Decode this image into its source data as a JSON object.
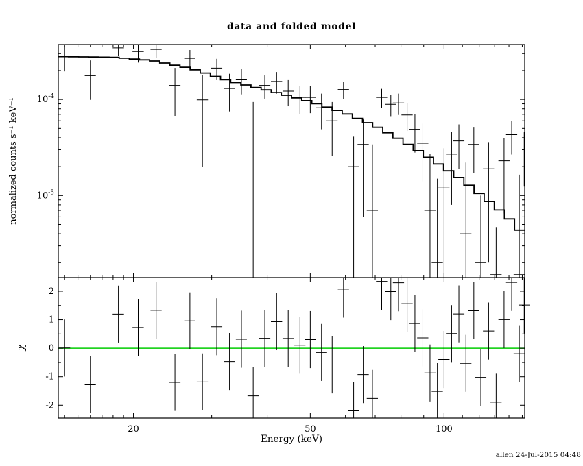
{
  "chart_data": {
    "type": "line+scatter",
    "title": "data and folded model",
    "xlabel": "Energy (keV)",
    "ylabel_top": "normalized counts s⁻¹ keV⁻¹",
    "ylabel_bottom": "χ",
    "watermark": "allen 24-Jul-2015 04:48",
    "xscale": "log",
    "yscale_top": "log",
    "yscale_bottom": "linear",
    "xlim": [
      13.55,
      151.9
    ],
    "ylim_top": [
      1.4e-06,
      0.000373
    ],
    "ylim_bottom": [
      -2.45,
      2.48
    ],
    "xticks": [
      20,
      50,
      100
    ],
    "xticks_minor": [
      14,
      15,
      16,
      17,
      18,
      19,
      30,
      40,
      60,
      70,
      80,
      90,
      110,
      120,
      130,
      140,
      150
    ],
    "yticks_top": [
      1e-05,
      0.0001
    ],
    "yticks_bottom": [
      -2,
      -1,
      0,
      1,
      2
    ],
    "grid": false,
    "legend": false,
    "zero_line_color": "#00cc00",
    "model_color": "#000000",
    "data_color": "#000000",
    "chi_err": 1.0,
    "model": [
      [
        13.5,
        0.00028
      ],
      [
        18,
        0.000275
      ],
      [
        22,
        0.000255
      ],
      [
        27,
        0.00021
      ],
      [
        33,
        0.000155
      ],
      [
        40,
        0.000125
      ],
      [
        50,
        9.5e-05
      ],
      [
        60,
        7.2e-05
      ],
      [
        70,
        5.3e-05
      ],
      [
        80,
        3.8e-05
      ],
      [
        90,
        2.7e-05
      ],
      [
        100,
        1.95e-05
      ],
      [
        110,
        1.45e-05
      ],
      [
        120,
        1.05e-05
      ],
      [
        130,
        7.8e-06
      ],
      [
        140,
        5.8e-06
      ],
      [
        152,
        3.8e-06
      ]
    ],
    "points": [
      {
        "e": 14.0,
        "w": 0.41,
        "y": 0.00028,
        "dy": 8.4e-05
      },
      {
        "e": 16.0,
        "w": 0.46,
        "y": 0.000177,
        "dy": 7.8e-05
      },
      {
        "e": 18.5,
        "w": 0.54,
        "y": 0.000344,
        "dy": 6e-05
      },
      {
        "e": 20.5,
        "w": 0.6,
        "y": 0.000315,
        "dy": 7.3e-05
      },
      {
        "e": 22.5,
        "w": 0.65,
        "y": 0.000332,
        "dy": 6.2e-05
      },
      {
        "e": 24.8,
        "w": 0.72,
        "y": 0.00014,
        "dy": 7.3e-05
      },
      {
        "e": 26.8,
        "w": 0.78,
        "y": 0.000268,
        "dy": 5.9e-05
      },
      {
        "e": 28.6,
        "w": 0.83,
        "y": 9.9e-05,
        "dy": 7.9e-05
      },
      {
        "e": 30.8,
        "w": 0.89,
        "y": 0.000212,
        "dy": 5.3e-05
      },
      {
        "e": 32.9,
        "w": 0.95,
        "y": 0.00013,
        "dy": 5.5e-05
      },
      {
        "e": 35.0,
        "w": 1.0,
        "y": 0.00016,
        "dy": 4.7e-05
      },
      {
        "e": 37.2,
        "w": 1.08,
        "y": 3.2e-05,
        "dy": 6.2e-05
      },
      {
        "e": 39.5,
        "w": 1.15,
        "y": 0.00014,
        "dy": 3.8e-05
      },
      {
        "e": 42.0,
        "w": 1.22,
        "y": 0.000154,
        "dy": 3.9e-05
      },
      {
        "e": 44.6,
        "w": 1.29,
        "y": 0.000122,
        "dy": 3.7e-05
      },
      {
        "e": 47.4,
        "w": 1.37,
        "y": 0.000105,
        "dy": 3.4e-05
      },
      {
        "e": 50.0,
        "w": 1.45,
        "y": 0.000105,
        "dy": 3.3e-05
      },
      {
        "e": 53.0,
        "w": 1.54,
        "y": 8.2e-05,
        "dy": 3.3e-05
      },
      {
        "e": 56.0,
        "w": 1.62,
        "y": 6e-05,
        "dy": 3.4e-05
      },
      {
        "e": 59.4,
        "w": 1.72,
        "y": 0.000127,
        "dy": 2.6e-05
      },
      {
        "e": 62.6,
        "w": 1.82,
        "y": 2e-05,
        "dy": 2.1e-05
      },
      {
        "e": 65.8,
        "w": 1.91,
        "y": 3.4e-05,
        "dy": 2.8e-05
      },
      {
        "e": 69.0,
        "w": 2.0,
        "y": 7e-06,
        "dy": 2.7e-05
      },
      {
        "e": 72.4,
        "w": 2.1,
        "y": 0.000105,
        "dy": 2.4e-05
      },
      {
        "e": 75.9,
        "w": 2.2,
        "y": 8.9e-05,
        "dy": 2.3e-05
      },
      {
        "e": 79.0,
        "w": 2.29,
        "y": 9.2e-05,
        "dy": 2.3e-05
      },
      {
        "e": 82.6,
        "w": 2.4,
        "y": 6.9e-05,
        "dy": 2.2e-05
      },
      {
        "e": 86.0,
        "w": 2.49,
        "y": 4.9e-05,
        "dy": 2.1e-05
      },
      {
        "e": 89.6,
        "w": 2.6,
        "y": 3.5e-05,
        "dy": 2.1e-05
      },
      {
        "e": 93.0,
        "w": 2.7,
        "y": 7e-06,
        "dy": 2e-05
      },
      {
        "e": 96.6,
        "w": 2.8,
        "y": 2e-06,
        "dy": 1.3e-05
      },
      {
        "e": 100.0,
        "w": 2.9,
        "y": 1.2e-05,
        "dy": 1.9e-05
      },
      {
        "e": 104.0,
        "w": 3.0,
        "y": 2.7e-05,
        "dy": 1.9e-05
      },
      {
        "e": 108.0,
        "w": 3.13,
        "y": 3.7e-05,
        "dy": 1.8e-05
      },
      {
        "e": 112.0,
        "w": 3.25,
        "y": 4e-06,
        "dy": 1.8e-05
      },
      {
        "e": 116.7,
        "w": 3.38,
        "y": 3.4e-05,
        "dy": 1.7e-05
      },
      {
        "e": 121.0,
        "w": 3.51,
        "y": 2e-06,
        "dy": 8e-06
      },
      {
        "e": 126.0,
        "w": 3.65,
        "y": 1.9e-05,
        "dy": 1.7e-05
      },
      {
        "e": 131.0,
        "w": 3.8,
        "y": 1.5e-06,
        "dy": 3.2e-06
      },
      {
        "e": 136.5,
        "w": 3.96,
        "y": 2.3e-05,
        "dy": 1.65e-05
      },
      {
        "e": 142.0,
        "w": 4.12,
        "y": 4.3e-05,
        "dy": 1.63e-05
      },
      {
        "e": 147.7,
        "w": 4.28,
        "y": 1.5e-06,
        "dy": 1.5e-05
      },
      {
        "e": 151.5,
        "w": 4.39,
        "y": 2.9e-05,
        "dy": 1.66e-05
      }
    ]
  }
}
